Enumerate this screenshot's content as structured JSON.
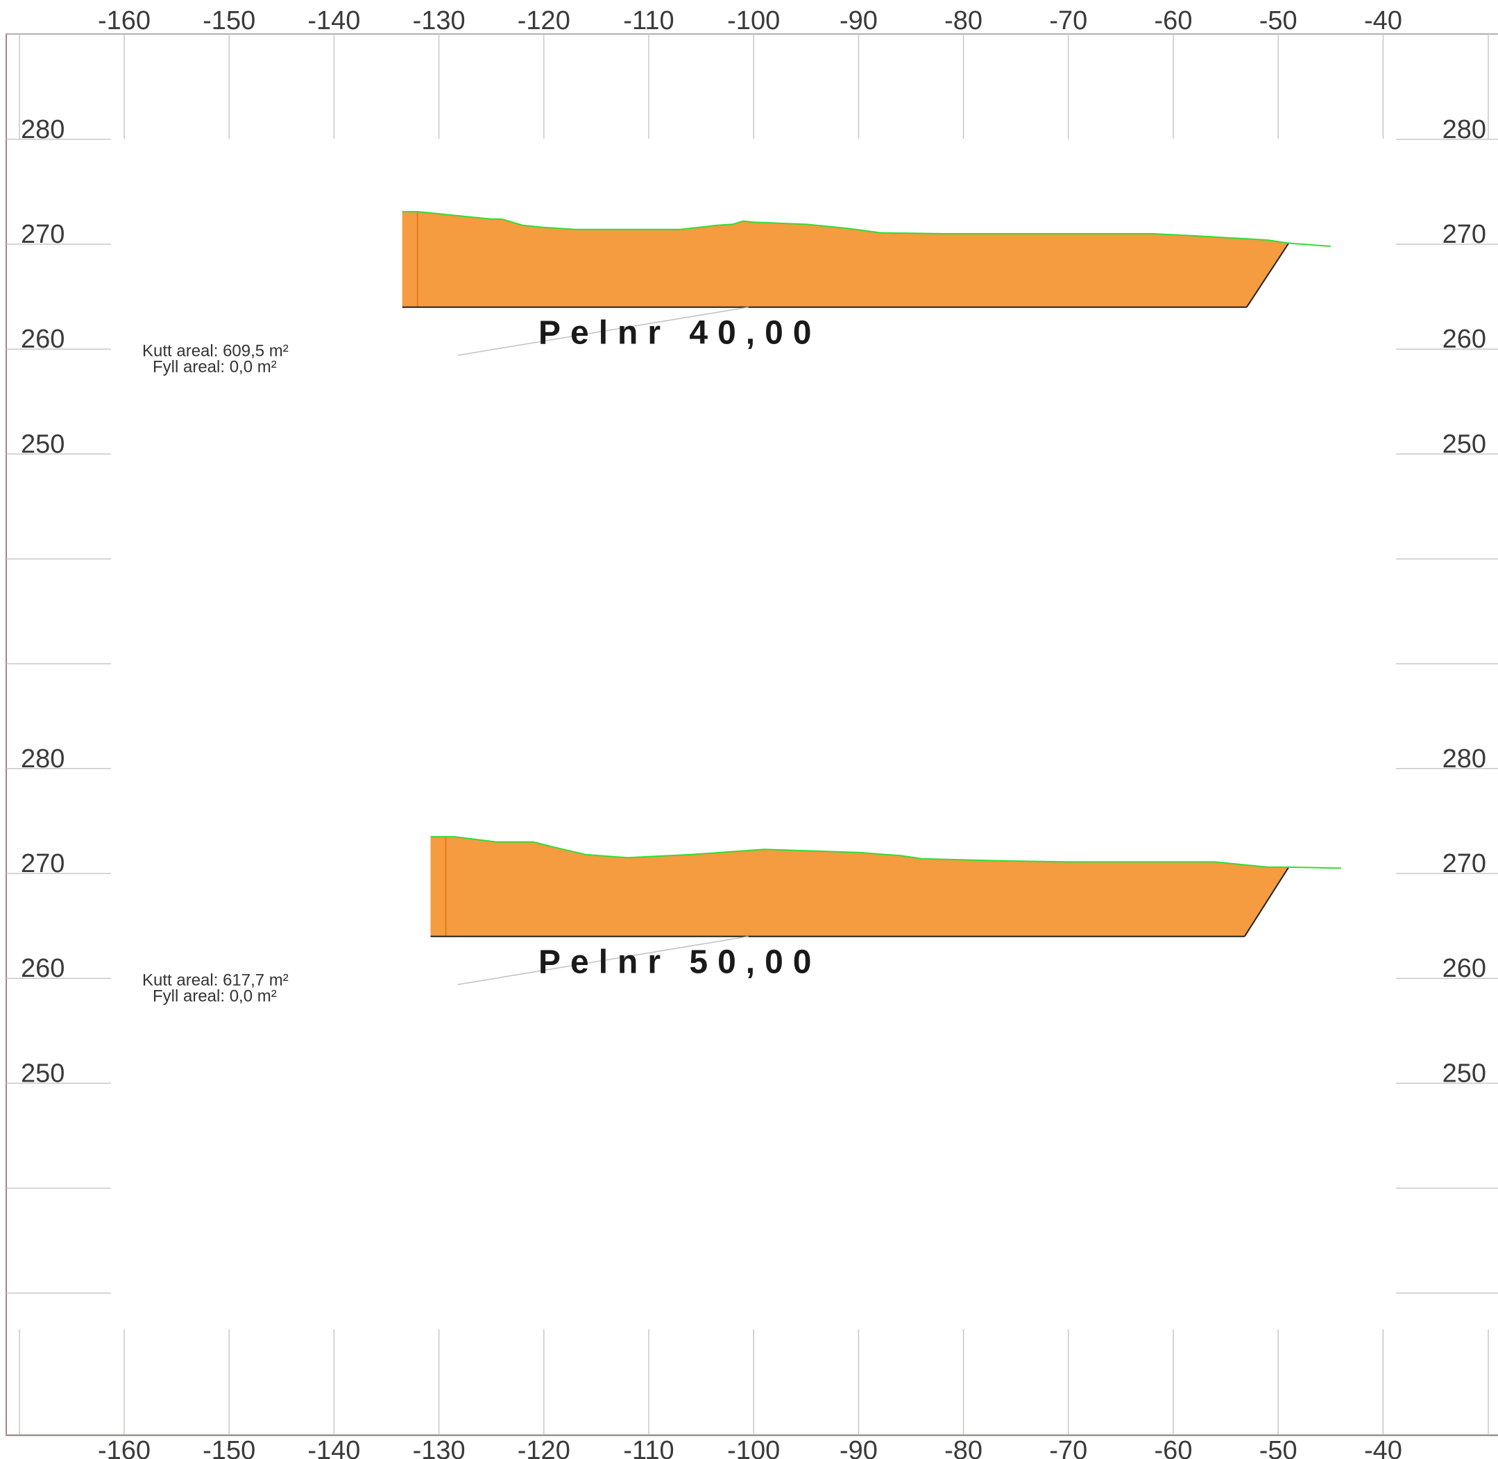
{
  "chart_data": {
    "type": "cross-section",
    "x_axis": {
      "ticks": [
        -160,
        -150,
        -140,
        -130,
        -120,
        -110,
        -100,
        -90,
        -80,
        -70,
        -60,
        -50,
        -40
      ],
      "labels": [
        "-160",
        "-150",
        "-140",
        "-130",
        "-120",
        "-110",
        "-100",
        "-90",
        "-80",
        "-70",
        "-60",
        "-50",
        "-40"
      ]
    },
    "sections": [
      {
        "title": "Pelnr 40,00",
        "kutt_label": "Kutt areal: 609,5 m²",
        "fyll_label": "Fyll areal:  0,0 m²",
        "y_ticks": [
          280,
          270,
          260,
          250
        ],
        "y_labels": [
          "280",
          "270",
          "260",
          "250"
        ],
        "terrain": [
          [
            -133.5,
            273.1
          ],
          [
            -132.0,
            273.1
          ],
          [
            -129,
            272.8
          ],
          [
            -125,
            272.4
          ],
          [
            -124,
            272.4
          ],
          [
            -122,
            271.8
          ],
          [
            -120,
            271.6
          ],
          [
            -117,
            271.4
          ],
          [
            -112,
            271.4
          ],
          [
            -107,
            271.4
          ],
          [
            -103.5,
            271.8
          ],
          [
            -102,
            271.9
          ],
          [
            -101,
            272.2
          ],
          [
            -100,
            272.1
          ],
          [
            -95,
            271.9
          ],
          [
            -91,
            271.5
          ],
          [
            -88,
            271.1
          ],
          [
            -82,
            271.0
          ],
          [
            -72,
            271.0
          ],
          [
            -62,
            271.0
          ],
          [
            -58,
            270.8
          ],
          [
            -51,
            270.4
          ],
          [
            -49,
            270.1
          ],
          [
            -45,
            269.8
          ]
        ],
        "cut_polygon": [
          [
            -133.5,
            273.1
          ],
          [
            -132.0,
            273.1
          ],
          [
            -129,
            272.8
          ],
          [
            -125,
            272.4
          ],
          [
            -124,
            272.4
          ],
          [
            -122,
            271.8
          ],
          [
            -120,
            271.6
          ],
          [
            -117,
            271.4
          ],
          [
            -112,
            271.4
          ],
          [
            -107,
            271.4
          ],
          [
            -103.5,
            271.8
          ],
          [
            -102,
            271.9
          ],
          [
            -101,
            272.2
          ],
          [
            -100,
            272.1
          ],
          [
            -95,
            271.9
          ],
          [
            -91,
            271.5
          ],
          [
            -88,
            271.1
          ],
          [
            -82,
            271.0
          ],
          [
            -72,
            271.0
          ],
          [
            -62,
            271.0
          ],
          [
            -58,
            270.8
          ],
          [
            -51,
            270.4
          ],
          [
            -49,
            270.1
          ],
          [
            -53.0,
            264.0
          ],
          [
            -133.5,
            264.0
          ]
        ],
        "formation_bottom": 264.0,
        "leader_from": [
          -100.5,
          264.0
        ],
        "leader_to": [
          -143.8,
          260.6
        ]
      },
      {
        "title": "Pelnr 50,00",
        "kutt_label": "Kutt areal: 617,7 m²",
        "fyll_label": "Fyll areal:  0,0 m²",
        "y_ticks": [
          280,
          270,
          260,
          250
        ],
        "y_labels": [
          "280",
          "270",
          "260",
          "250"
        ],
        "terrain": [
          [
            -130.8,
            273.5
          ],
          [
            -130.4,
            273.5
          ],
          [
            -128.5,
            273.5
          ],
          [
            -124.5,
            273.0
          ],
          [
            -121,
            273.0
          ],
          [
            -119,
            272.5
          ],
          [
            -116,
            271.8
          ],
          [
            -112,
            271.5
          ],
          [
            -106,
            271.8
          ],
          [
            -99,
            272.3
          ],
          [
            -90,
            272.0
          ],
          [
            -86,
            271.7
          ],
          [
            -84,
            271.4
          ],
          [
            -76,
            271.2
          ],
          [
            -70,
            271.1
          ],
          [
            -62,
            271.1
          ],
          [
            -56,
            271.1
          ],
          [
            -53,
            270.8
          ],
          [
            -51,
            270.6
          ],
          [
            -49,
            270.6
          ],
          [
            -44,
            270.5
          ]
        ],
        "cut_polygon": [
          [
            -130.8,
            273.5
          ],
          [
            -128.5,
            273.5
          ],
          [
            -124.5,
            273.0
          ],
          [
            -121,
            273.0
          ],
          [
            -119,
            272.5
          ],
          [
            -116,
            271.8
          ],
          [
            -112,
            271.5
          ],
          [
            -106,
            271.8
          ],
          [
            -99,
            272.3
          ],
          [
            -90,
            272.0
          ],
          [
            -86,
            271.7
          ],
          [
            -84,
            271.4
          ],
          [
            -76,
            271.2
          ],
          [
            -70,
            271.1
          ],
          [
            -62,
            271.1
          ],
          [
            -56,
            271.1
          ],
          [
            -53,
            270.8
          ],
          [
            -51,
            270.6
          ],
          [
            -49,
            270.6
          ],
          [
            -53.2,
            264.0
          ],
          [
            -130.8,
            264.0
          ]
        ],
        "formation_bottom": 264.0,
        "leader_from": [
          -100.5,
          264.0
        ],
        "leader_to": [
          -143.8,
          260.6
        ]
      }
    ],
    "colors": {
      "cut_fill": "#F59B40",
      "cut_edge": "#E37A1D",
      "terrain_line": "#33DD33",
      "grid": "#C8C8C8",
      "frame": "#8B5A5A",
      "formation": "#222222",
      "leader": "#C0C0C0"
    }
  }
}
